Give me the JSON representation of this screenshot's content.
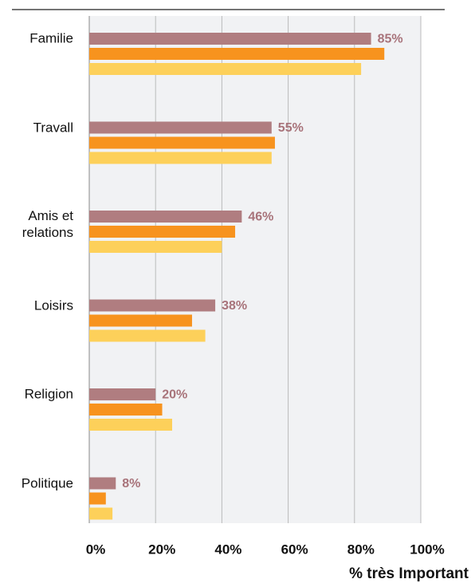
{
  "chart_data": {
    "type": "bar",
    "orientation": "horizontal",
    "categories": [
      "Familie",
      "Travall",
      "Amis et relations",
      "Loisirs",
      "Religion",
      "Politique"
    ],
    "series": [
      {
        "color": "#b07d80",
        "values": [
          85,
          55,
          46,
          38,
          20,
          8
        ],
        "value_labels": [
          "85%",
          "55%",
          "46%",
          "38%",
          "20%",
          "8%"
        ]
      },
      {
        "color": "#f7931e",
        "values": [
          89,
          56,
          44,
          31,
          22,
          5
        ]
      },
      {
        "color": "#fdd05a",
        "values": [
          82,
          55,
          40,
          35,
          25,
          7
        ]
      }
    ],
    "xlim": [
      0,
      100
    ],
    "xticks": [
      {
        "value": 0,
        "label": "0%"
      },
      {
        "value": 20,
        "label": "20%"
      },
      {
        "value": 40,
        "label": "40%"
      },
      {
        "value": 60,
        "label": "60%"
      },
      {
        "value": 80,
        "label": "80%"
      },
      {
        "value": 100,
        "label": "100%"
      }
    ],
    "xlabel": "% très Important",
    "grid": true
  }
}
